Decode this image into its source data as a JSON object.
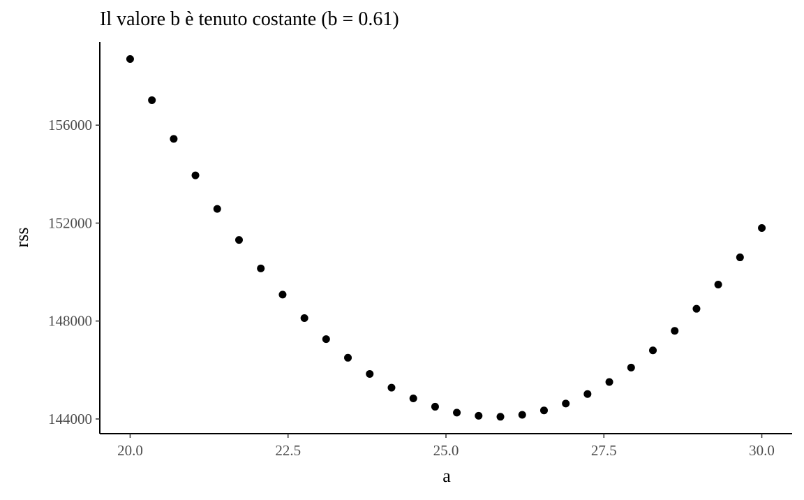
{
  "chart_data": {
    "type": "scatter",
    "title": "Il valore b è tenuto costante (b = 0.61)",
    "xlabel": "a",
    "ylabel": "rss",
    "xlim": [
      19.52,
      30.48
    ],
    "ylim": [
      143400,
      159400
    ],
    "x_ticks": [
      20.0,
      22.5,
      25.0,
      27.5,
      30.0
    ],
    "x_tick_labels": [
      "20.0",
      "22.5",
      "25.0",
      "27.5",
      "30.0"
    ],
    "y_ticks": [
      144000,
      148000,
      152000,
      156000
    ],
    "y_tick_labels": [
      "144000",
      "148000",
      "152000",
      "156000"
    ],
    "grid": false,
    "legend": "none",
    "point_color": "#000000",
    "x": [
      20.0,
      20.345,
      20.69,
      21.034,
      21.379,
      21.724,
      22.069,
      22.414,
      22.759,
      23.103,
      23.448,
      23.793,
      24.138,
      24.483,
      24.828,
      25.172,
      25.517,
      25.862,
      26.207,
      26.552,
      26.897,
      27.241,
      27.586,
      27.931,
      28.276,
      28.621,
      28.966,
      29.31,
      29.655,
      30.0
    ],
    "y": [
      158700,
      157020,
      155440,
      153950,
      152580,
      151310,
      150150,
      149080,
      148120,
      147260,
      146500,
      145840,
      145280,
      144840,
      144500,
      144260,
      144130,
      144090,
      144170,
      144350,
      144630,
      145020,
      145510,
      146100,
      146800,
      147600,
      148500,
      149490,
      150600,
      151800
    ]
  }
}
